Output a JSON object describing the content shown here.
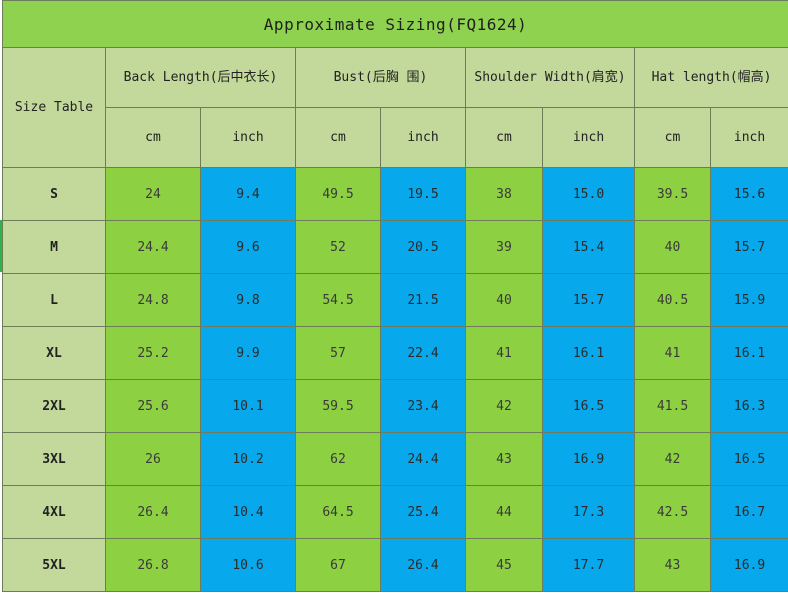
{
  "title": "Approximate Sizing(FQ1624)",
  "size_table_label": "Size Table",
  "groups": [
    {
      "label": "Back Length(后中衣长)",
      "units": [
        "cm",
        "inch"
      ]
    },
    {
      "label": "Bust(后胸 围)",
      "units": [
        "cm",
        "inch"
      ]
    },
    {
      "label": "Shoulder Width(肩宽)",
      "units": [
        "cm",
        "inch"
      ]
    },
    {
      "label": "Hat length(帽高)",
      "units": [
        "cm",
        "inch"
      ]
    }
  ],
  "rows": [
    {
      "size": "S",
      "values": [
        "24",
        "9.4",
        "49.5",
        "19.5",
        "38",
        "15.0",
        "39.5",
        "15.6"
      ]
    },
    {
      "size": "M",
      "values": [
        "24.4",
        "9.6",
        "52",
        "20.5",
        "39",
        "15.4",
        "40",
        "15.7"
      ]
    },
    {
      "size": "L",
      "values": [
        "24.8",
        "9.8",
        "54.5",
        "21.5",
        "40",
        "15.7",
        "40.5",
        "15.9"
      ]
    },
    {
      "size": "XL",
      "values": [
        "25.2",
        "9.9",
        "57",
        "22.4",
        "41",
        "16.1",
        "41",
        "16.1"
      ]
    },
    {
      "size": "2XL",
      "values": [
        "25.6",
        "10.1",
        "59.5",
        "23.4",
        "42",
        "16.5",
        "41.5",
        "16.3"
      ]
    },
    {
      "size": "3XL",
      "values": [
        "26",
        "10.2",
        "62",
        "24.4",
        "43",
        "16.9",
        "42",
        "16.5"
      ]
    },
    {
      "size": "4XL",
      "values": [
        "26.4",
        "10.4",
        "64.5",
        "25.4",
        "44",
        "17.3",
        "42.5",
        "16.7"
      ]
    },
    {
      "size": "5XL",
      "values": [
        "26.8",
        "10.6",
        "67",
        "26.4",
        "45",
        "17.7",
        "43",
        "16.9"
      ]
    }
  ]
}
